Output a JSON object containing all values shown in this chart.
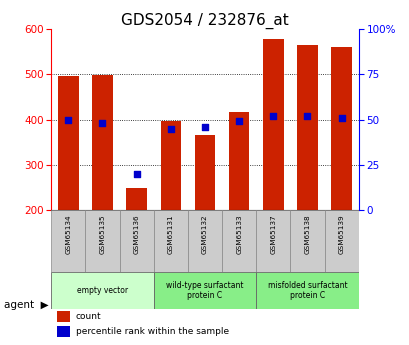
{
  "title": "GDS2054 / 232876_at",
  "categories": [
    "GSM65134",
    "GSM65135",
    "GSM65136",
    "GSM65131",
    "GSM65132",
    "GSM65133",
    "GSM65137",
    "GSM65138",
    "GSM65139"
  ],
  "count_values": [
    497,
    498,
    248,
    396,
    365,
    416,
    578,
    565,
    560
  ],
  "percentile_values": [
    50,
    48,
    20,
    45,
    46,
    49,
    52,
    52,
    51
  ],
  "bar_bottom": 200,
  "ylim_left": [
    200,
    600
  ],
  "ylim_right": [
    0,
    100
  ],
  "yticks_left": [
    200,
    300,
    400,
    500,
    600
  ],
  "yticks_right": [
    0,
    25,
    50,
    75,
    100
  ],
  "yticklabels_right": [
    "0",
    "25",
    "50",
    "75",
    "100%"
  ],
  "bar_color": "#cc2200",
  "dot_color": "#0000cc",
  "group_defs": [
    [
      0,
      2,
      "empty vector",
      "#ccffcc"
    ],
    [
      3,
      5,
      "wild-type surfactant\nprotein C",
      "#88ee88"
    ],
    [
      6,
      8,
      "misfolded surfactant\nprotein C",
      "#88ee88"
    ]
  ],
  "legend_count_label": "count",
  "legend_pct_label": "percentile rank within the sample",
  "title_fontsize": 11,
  "tick_fontsize": 7.5,
  "bar_width": 0.6
}
